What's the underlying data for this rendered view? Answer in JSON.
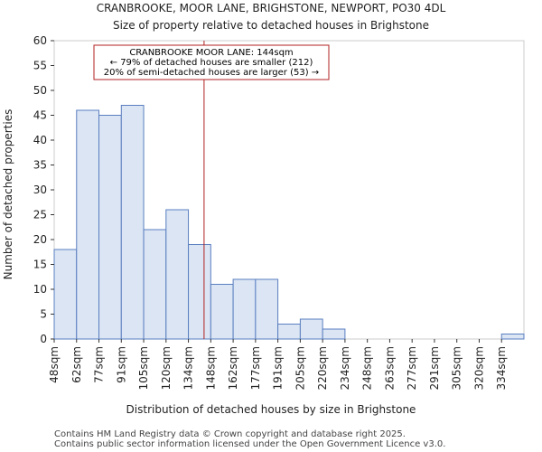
{
  "chart_data": {
    "type": "bar",
    "title": "CRANBROOKE, MOOR LANE, BRIGHSTONE, NEWPORT, PO30 4DL",
    "subtitle": "Size of property relative to detached houses in Brighstone",
    "xlabel": "Distribution of detached houses by size in Brighstone",
    "ylabel": "Number of detached properties",
    "ylim": [
      0,
      60
    ],
    "yticks": [
      0,
      5,
      10,
      15,
      20,
      25,
      30,
      35,
      40,
      45,
      50,
      55,
      60
    ],
    "categories": [
      "48sqm",
      "62sqm",
      "77sqm",
      "91sqm",
      "105sqm",
      "120sqm",
      "134sqm",
      "148sqm",
      "162sqm",
      "177sqm",
      "191sqm",
      "205sqm",
      "220sqm",
      "234sqm",
      "248sqm",
      "263sqm",
      "277sqm",
      "291sqm",
      "305sqm",
      "320sqm",
      "334sqm"
    ],
    "values": [
      18,
      46,
      45,
      47,
      22,
      26,
      19,
      11,
      12,
      12,
      3,
      4,
      2,
      0,
      0,
      0,
      0,
      0,
      0,
      0,
      1
    ],
    "marker_value_bins": 6.7,
    "bar_color": "#dbe5f4",
    "bar_edge_color": "#5a7fc0",
    "marker_color": "#b22222",
    "annotation": {
      "line1": "CRANBROOKE MOOR LANE: 144sqm",
      "line2": "← 79% of detached houses are smaller (212)",
      "line3": "20% of semi-detached houses are larger (53) →"
    }
  },
  "footer": {
    "line1": "Contains HM Land Registry data © Crown copyright and database right 2025.",
    "line2": "Contains public sector information licensed under the Open Government Licence v3.0."
  }
}
